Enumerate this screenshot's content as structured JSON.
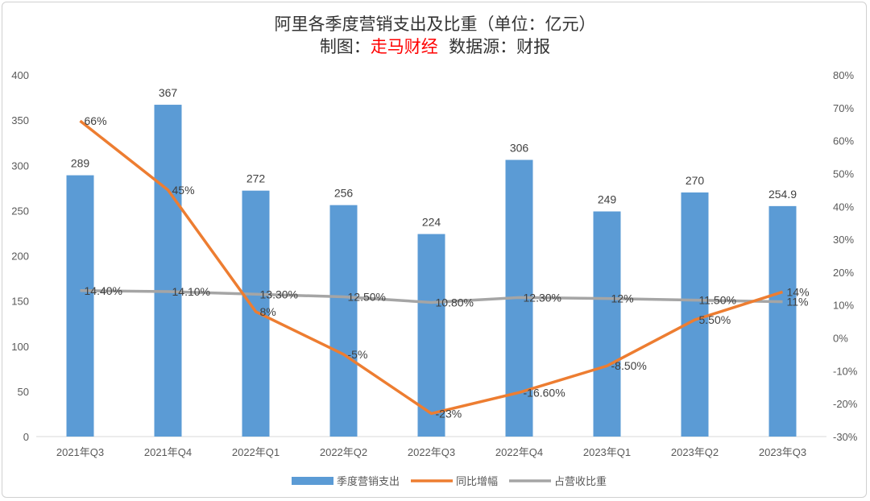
{
  "chart_data": {
    "type": "bar",
    "title": "阿里各季度营销支出及比重（单位：亿元）",
    "subtitle": {
      "prefix": "制图：",
      "brand": "走马财经",
      "suffix": "  数据源：财报"
    },
    "categories": [
      "2021年Q3",
      "2021年Q4",
      "2022年Q1",
      "2022年Q2",
      "2022年Q3",
      "2022年Q4",
      "2023年Q1",
      "2023年Q2",
      "2023年Q3"
    ],
    "left_axis": {
      "min": 0,
      "max": 400,
      "step": 50,
      "ticks": [
        "0",
        "50",
        "100",
        "150",
        "200",
        "250",
        "300",
        "350",
        "400"
      ]
    },
    "right_axis": {
      "min": -30,
      "max": 80,
      "step": 10,
      "ticks": [
        "-30%",
        "-20%",
        "-10%",
        "0%",
        "10%",
        "20%",
        "30%",
        "40%",
        "50%",
        "60%",
        "70%",
        "80%"
      ]
    },
    "grid": false,
    "legend_placement": "bottom",
    "series": [
      {
        "name": "季度营销支出",
        "type": "bar",
        "axis": "left",
        "color": "#5b9bd5",
        "values": [
          289,
          367,
          272,
          256,
          224,
          306,
          249,
          270,
          254.9
        ],
        "labels": [
          "289",
          "367",
          "272",
          "256",
          "224",
          "306",
          "249",
          "270",
          "254.9"
        ]
      },
      {
        "name": "同比增幅",
        "type": "line",
        "axis": "right",
        "color": "#ed7d31",
        "values": [
          66,
          45,
          8,
          -5,
          -23,
          -16.6,
          -8.5,
          5.5,
          14
        ],
        "labels": [
          "66%",
          "45%",
          "8%",
          "-5%",
          "-23%",
          "-16.60%",
          "-8.50%",
          "5.50%",
          "14%"
        ]
      },
      {
        "name": "占营收比重",
        "type": "line",
        "axis": "right",
        "color": "#a5a5a5",
        "values": [
          14.4,
          14.1,
          13.3,
          12.5,
          10.8,
          12.3,
          12,
          11.5,
          11
        ],
        "labels": [
          "14.40%",
          "14.10%",
          "13.30%",
          "12.50%",
          "10.80%",
          "12.30%",
          "12%",
          "11.50%",
          "11%"
        ]
      }
    ]
  }
}
